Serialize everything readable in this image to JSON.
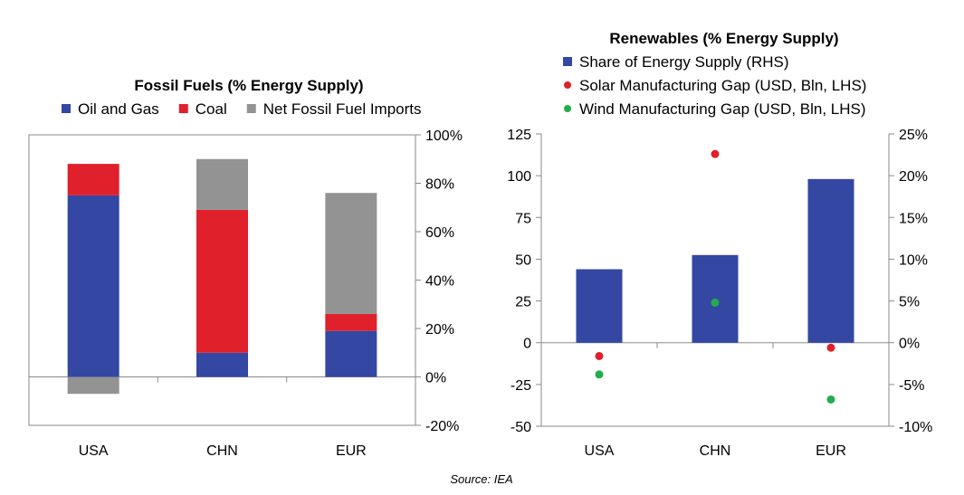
{
  "colors": {
    "blue": "#3347a3",
    "red": "#e0202a",
    "gray": "#939393",
    "green": "#20ad4a",
    "axis": "#8a8a8a"
  },
  "source": "Source: IEA",
  "chart_data": [
    {
      "type": "bar",
      "stacked": true,
      "title": "Fossil Fuels (% Energy Supply)",
      "categories": [
        "USA",
        "CHN",
        "EUR"
      ],
      "series": [
        {
          "name": "Oil and Gas",
          "color_key": "blue",
          "values": [
            75,
            10,
            19
          ]
        },
        {
          "name": "Coal",
          "color_key": "red",
          "values": [
            13,
            59,
            7
          ]
        },
        {
          "name": "Net Fossil Fuel Imports",
          "color_key": "gray",
          "values": [
            -7,
            21,
            50
          ]
        }
      ],
      "ylim": [
        -20,
        100
      ],
      "yticks": [
        100,
        80,
        60,
        40,
        20,
        0,
        -20
      ],
      "ytick_labels": [
        "100%",
        "80%",
        "60%",
        "40%",
        "20%",
        "0%",
        "-20%"
      ],
      "y_axis_side": "right",
      "legend": "top",
      "grid": false
    },
    {
      "type": "bar+scatter",
      "title": "Renewables (% Energy Supply)",
      "categories": [
        "USA",
        "CHN",
        "EUR"
      ],
      "bar_series": {
        "name": "Share of Energy Supply (RHS)",
        "color_key": "blue",
        "axis": "right",
        "values": [
          8.8,
          10.5,
          19.6
        ]
      },
      "point_series": [
        {
          "name": "Solar Manufacturing Gap (USD, Bln, LHS)",
          "color_key": "red",
          "axis": "left",
          "values": [
            -8,
            113,
            -3
          ]
        },
        {
          "name": "Wind Manufacturing Gap (USD, Bln, LHS)",
          "color_key": "green",
          "axis": "left",
          "values": [
            -19,
            24,
            -34
          ]
        }
      ],
      "left_ylim": [
        -50,
        125
      ],
      "left_yticks": [
        125,
        100,
        75,
        50,
        25,
        0,
        -25,
        -50
      ],
      "left_ytick_labels": [
        "125",
        "100",
        "75",
        "50",
        "25",
        "0",
        "-25",
        "-50"
      ],
      "right_ylim": [
        -10,
        25
      ],
      "right_yticks": [
        25,
        20,
        15,
        10,
        5,
        0,
        -5,
        -10
      ],
      "right_ytick_labels": [
        "25%",
        "20%",
        "15%",
        "10%",
        "5%",
        "0%",
        "-5%",
        "-10%"
      ],
      "legend": "top",
      "grid": false
    }
  ]
}
